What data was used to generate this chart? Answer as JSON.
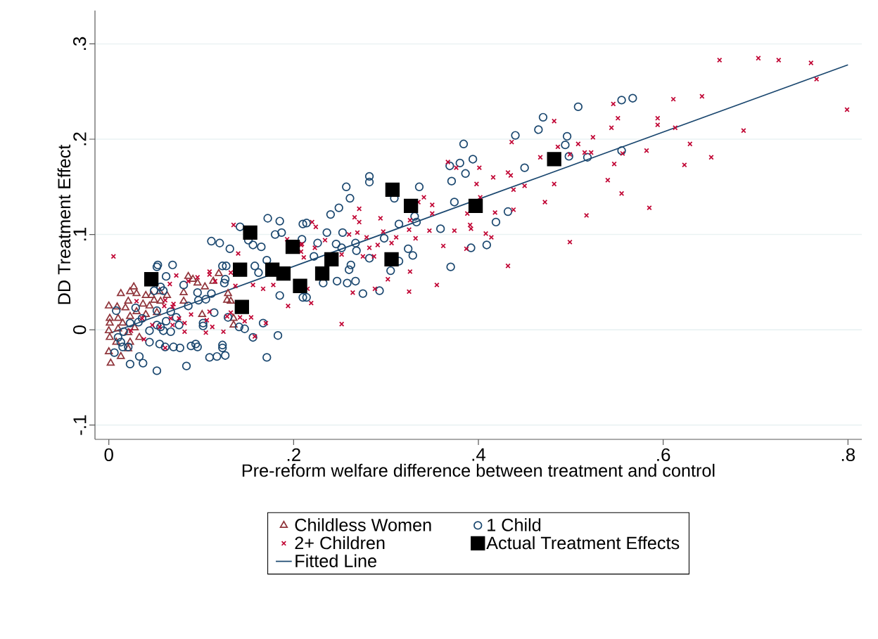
{
  "chart_data": {
    "type": "scatter",
    "xlabel": "Pre-reform welfare difference between treatment and control",
    "ylabel": "DD Treatment Effect",
    "xlim": [
      -0.015,
      0.815
    ],
    "ylim": [
      -0.115,
      0.335
    ],
    "xticks": [
      0,
      {
        "value": 0.2,
        "label": ".2"
      },
      {
        "value": 0.4,
        "label": ".4"
      },
      {
        "value": 0.6,
        "label": ".6"
      },
      {
        "value": 0.8,
        "label": ".8"
      }
    ],
    "yticks": [
      {
        "value": -0.1,
        "label": "-.1"
      },
      0,
      {
        "value": 0.1,
        "label": ".1"
      },
      {
        "value": 0.2,
        "label": ".2"
      },
      {
        "value": 0.3,
        "label": ".3"
      }
    ],
    "grid": "y",
    "legend": "bottom",
    "series": [
      {
        "name": "Childless Women",
        "type": "scatter",
        "marker": "triangle",
        "color": "#90353b",
        "x": [
          0.086,
          0.091,
          0.096,
          0.104,
          0.113,
          0.119,
          0.081,
          0.027,
          0.023,
          0.03,
          0.013,
          0.04,
          0.046,
          0.055,
          0.049,
          0.037,
          0.021,
          0.0,
          0.009,
          0.018,
          0.03,
          0.001,
          0.01,
          0.023,
          0.04,
          0.052,
          0.044,
          0.0,
          0.01,
          0.021,
          0.028,
          0.001,
          0.008,
          0.023,
          0.033,
          0.0,
          0.013,
          0.002,
          0.021,
          0.056,
          0.063,
          0.129,
          0.132,
          0.128,
          0.101,
          0.135,
          0.135,
          0.081,
          0.015,
          0.001
        ],
        "values": [
          0.056,
          0.053,
          0.049,
          0.045,
          0.051,
          0.059,
          0.039,
          0.045,
          0.04,
          0.038,
          0.038,
          0.036,
          0.036,
          0.04,
          0.031,
          0.027,
          0.03,
          0.025,
          0.024,
          0.023,
          0.019,
          0.012,
          0.012,
          0.014,
          0.016,
          0.018,
          0.025,
          -0.001,
          0.001,
          -0.003,
          0.002,
          -0.008,
          -0.013,
          -0.013,
          -0.008,
          -0.023,
          -0.028,
          -0.035,
          -0.02,
          0.03,
          0.036,
          0.038,
          0.03,
          0.031,
          0.016,
          0.005,
          0.012,
          0.03,
          0.007,
          0.007
        ]
      },
      {
        "name": "1 Child",
        "type": "scatter",
        "marker": "circle",
        "color": "#1a476f",
        "x": [
          0.508,
          0.555,
          0.567,
          0.496,
          0.494,
          0.498,
          0.518,
          0.555,
          0.47,
          0.465,
          0.44,
          0.384,
          0.394,
          0.38,
          0.369,
          0.386,
          0.371,
          0.45,
          0.374,
          0.432,
          0.419,
          0.409,
          0.392,
          0.37,
          0.359,
          0.336,
          0.331,
          0.333,
          0.314,
          0.314,
          0.305,
          0.324,
          0.329,
          0.309,
          0.282,
          0.282,
          0.257,
          0.261,
          0.249,
          0.24,
          0.214,
          0.236,
          0.253,
          0.246,
          0.252,
          0.267,
          0.268,
          0.282,
          0.262,
          0.26,
          0.247,
          0.258,
          0.267,
          0.275,
          0.293,
          0.298,
          0.226,
          0.222,
          0.232,
          0.214,
          0.209,
          0.172,
          0.185,
          0.142,
          0.18,
          0.187,
          0.111,
          0.12,
          0.131,
          0.151,
          0.156,
          0.165,
          0.171,
          0.123,
          0.127,
          0.158,
          0.162,
          0.126,
          0.053,
          0.052,
          0.069,
          0.062,
          0.056,
          0.049,
          0.059,
          0.081,
          0.096,
          0.111,
          0.105,
          0.125,
          0.185,
          0.086,
          0.029,
          0.052,
          0.008,
          0.073,
          0.062,
          0.023,
          0.044,
          0.059,
          0.067,
          0.076,
          0.102,
          0.102,
          0.114,
          0.129,
          0.141,
          0.147,
          0.167,
          0.183,
          0.156,
          0.044,
          0.055,
          0.061,
          0.07,
          0.077,
          0.089,
          0.094,
          0.096,
          0.123,
          0.123,
          0.109,
          0.117,
          0.126,
          0.171,
          0.084,
          0.052,
          0.023,
          0.037,
          0.033,
          0.006,
          0.01,
          0.013,
          0.015,
          0.021,
          0.016,
          0.032,
          0.036,
          0.056,
          0.21,
          0.21,
          0.067,
          0.052,
          0.097
        ],
        "values": [
          0.234,
          0.241,
          0.243,
          0.203,
          0.194,
          0.182,
          0.181,
          0.188,
          0.223,
          0.21,
          0.204,
          0.195,
          0.179,
          0.175,
          0.172,
          0.164,
          0.156,
          0.17,
          0.134,
          0.124,
          0.113,
          0.089,
          0.086,
          0.066,
          0.106,
          0.15,
          0.119,
          0.113,
          0.111,
          0.072,
          0.062,
          0.085,
          0.078,
          0.138,
          0.161,
          0.155,
          0.15,
          0.138,
          0.128,
          0.121,
          0.112,
          0.102,
          0.102,
          0.09,
          0.086,
          0.091,
          0.083,
          0.075,
          0.068,
          0.063,
          0.051,
          0.049,
          0.051,
          0.038,
          0.041,
          0.096,
          0.091,
          0.077,
          0.049,
          0.034,
          0.095,
          0.117,
          0.114,
          0.108,
          0.1,
          0.102,
          0.093,
          0.091,
          0.085,
          0.094,
          0.089,
          0.087,
          0.073,
          0.067,
          0.067,
          0.067,
          0.06,
          0.053,
          0.068,
          0.066,
          0.068,
          0.056,
          0.045,
          0.041,
          0.041,
          0.047,
          0.039,
          0.038,
          0.032,
          0.049,
          0.036,
          0.025,
          0.023,
          0.02,
          0.02,
          0.013,
          0.009,
          0.007,
          -0.001,
          -0.001,
          -0.002,
          0.005,
          0.007,
          0.004,
          0.018,
          0.013,
          0.003,
          0.001,
          0.007,
          -0.006,
          -0.008,
          -0.013,
          -0.015,
          -0.018,
          -0.018,
          -0.019,
          -0.017,
          -0.015,
          -0.018,
          -0.016,
          -0.019,
          -0.029,
          -0.028,
          -0.027,
          -0.029,
          -0.038,
          -0.043,
          -0.036,
          -0.035,
          -0.028,
          -0.024,
          -0.008,
          -0.013,
          -0.018,
          -0.018,
          -0.002,
          0.008,
          0.012,
          0.003,
          0.111,
          0.034,
          0.019,
          0.005,
          0.031
        ]
      },
      {
        "name": "2+ Children",
        "type": "scatter",
        "marker": "cross",
        "color": "#c10534",
        "x": [
          0.661,
          0.703,
          0.725,
          0.76,
          0.766,
          0.799,
          0.687,
          0.642,
          0.611,
          0.613,
          0.629,
          0.652,
          0.623,
          0.594,
          0.594,
          0.582,
          0.585,
          0.546,
          0.551,
          0.544,
          0.547,
          0.54,
          0.555,
          0.517,
          0.499,
          0.524,
          0.508,
          0.515,
          0.522,
          0.499,
          0.556,
          0.482,
          0.436,
          0.486,
          0.467,
          0.482,
          0.472,
          0.438,
          0.432,
          0.435,
          0.45,
          0.416,
          0.438,
          0.418,
          0.401,
          0.398,
          0.402,
          0.388,
          0.391,
          0.392,
          0.408,
          0.414,
          0.432,
          0.387,
          0.367,
          0.376,
          0.374,
          0.362,
          0.355,
          0.347,
          0.341,
          0.35,
          0.35,
          0.335,
          0.332,
          0.326,
          0.325,
          0.325,
          0.326,
          0.311,
          0.306,
          0.302,
          0.288,
          0.294,
          0.297,
          0.291,
          0.287,
          0.282,
          0.279,
          0.275,
          0.271,
          0.266,
          0.271,
          0.269,
          0.26,
          0.264,
          0.252,
          0.252,
          0.234,
          0.223,
          0.22,
          0.224,
          0.219,
          0.215,
          0.211,
          0.209,
          0.005,
          0.135,
          0.14,
          0.193,
          0.073,
          0.066,
          0.109,
          0.109,
          0.096,
          0.086,
          0.115,
          0.132,
          0.137,
          0.156,
          0.167,
          0.178,
          0.194,
          0.208,
          0.208,
          0.142,
          0.147,
          0.154,
          0.17,
          0.158,
          0.124,
          0.112,
          0.105,
          0.106,
          0.109,
          0.089,
          0.082,
          0.082,
          0.069,
          0.067,
          0.061,
          0.06,
          0.07,
          0.069,
          0.061,
          0.038,
          0.047,
          0.036,
          0.055,
          0.03,
          0.024,
          0.076,
          0.132,
          0.128
        ],
        "values": [
          0.283,
          0.285,
          0.283,
          0.28,
          0.263,
          0.231,
          0.209,
          0.245,
          0.242,
          0.212,
          0.195,
          0.181,
          0.173,
          0.222,
          0.215,
          0.188,
          0.128,
          0.237,
          0.222,
          0.212,
          0.174,
          0.157,
          0.143,
          0.12,
          0.092,
          0.202,
          0.195,
          0.186,
          0.186,
          0.184,
          0.185,
          0.219,
          0.197,
          0.192,
          0.181,
          0.153,
          0.134,
          0.147,
          0.165,
          0.162,
          0.151,
          0.16,
          0.126,
          0.123,
          0.17,
          0.153,
          0.139,
          0.122,
          0.11,
          0.106,
          0.101,
          0.097,
          0.067,
          0.085,
          0.176,
          0.17,
          0.104,
          0.088,
          0.047,
          0.104,
          0.139,
          0.131,
          0.122,
          0.134,
          0.096,
          0.061,
          0.04,
          0.105,
          0.115,
          0.097,
          0.091,
          0.053,
          0.043,
          0.117,
          0.103,
          0.089,
          0.077,
          0.086,
          0.097,
          0.077,
          0.127,
          0.118,
          0.113,
          0.102,
          0.1,
          0.039,
          0.006,
          0.079,
          0.094,
          0.086,
          0.113,
          0.108,
          0.028,
          0.043,
          0.076,
          0.09,
          0.077,
          0.11,
          0.08,
          0.095,
          0.057,
          0.048,
          0.061,
          0.058,
          0.055,
          0.051,
          0.051,
          0.06,
          0.046,
          0.047,
          0.043,
          0.047,
          0.025,
          0.089,
          0.082,
          0.013,
          0.009,
          0.013,
          0.007,
          -0.007,
          -0.002,
          0.003,
          -0.003,
          0.01,
          0.019,
          0.016,
          0.007,
          -0.002,
          0.005,
          0.012,
          0.031,
          0.025,
          0.027,
          0.024,
          -0.019,
          -0.01,
          0.005,
          0.012,
          0.003,
          0.03,
          -0.001,
          0.012,
          0.018,
          0.014
        ]
      },
      {
        "name": "Actual Treatment Effects",
        "type": "scatter",
        "marker": "square",
        "color": "#000000",
        "x": [
          0.046,
          0.153,
          0.142,
          0.144,
          0.177,
          0.189,
          0.199,
          0.207,
          0.231,
          0.241,
          0.307,
          0.306,
          0.327,
          0.397,
          0.482
        ],
        "values": [
          0.053,
          0.102,
          0.063,
          0.024,
          0.063,
          0.059,
          0.087,
          0.046,
          0.059,
          0.074,
          0.147,
          0.074,
          0.13,
          0.13,
          0.179
        ]
      },
      {
        "name": "Fitted Line",
        "type": "line",
        "marker": "none",
        "color": "#1a476f",
        "x": [
          0,
          0.8
        ],
        "values": [
          -0.004,
          0.278
        ]
      }
    ]
  }
}
